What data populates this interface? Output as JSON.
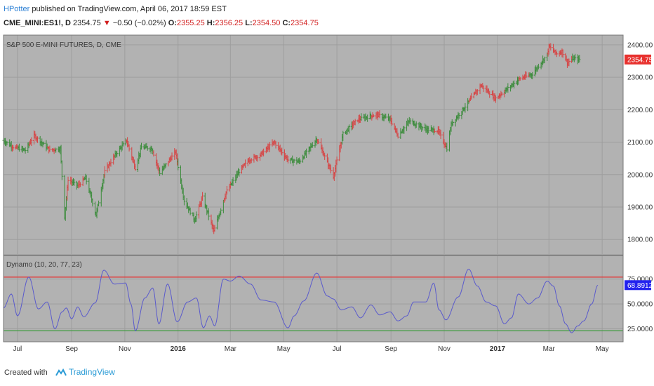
{
  "header": {
    "author": "HPotter",
    "published_text": "published on TradingView.com, April 06, 2017 18:59 EST",
    "symbol": "CME_MINI:ES1!, D",
    "last": "2354.75",
    "change": "−0.50 (−0.02%)",
    "o_label": "O:",
    "o": "2355.25",
    "h_label": "H:",
    "h": "2356.25",
    "l_label": "L:",
    "l": "2354.50",
    "c_label": "C:",
    "c": "2354.75"
  },
  "footer": {
    "created_with": "Created with",
    "brand": "TradingView"
  },
  "colors": {
    "pane_bg": "#b2b2b2",
    "grid": "#9e9e9e",
    "up": "#3c8c3c",
    "down": "#d64545",
    "oscillator": "#5a5acc",
    "upper_band": "#e33a3a",
    "lower_band": "#3a9b3a",
    "price_tag": "#e8322f",
    "osc_tag": "#2222ee"
  },
  "chart_data": [
    {
      "type": "ohlc",
      "title": "S&P 500 E-MINI FUTURES, D, CME",
      "x_range": [
        "2015-06-15",
        "2017-05-25"
      ],
      "ylim": [
        1755,
        2430
      ],
      "yticks": [
        "2400.00",
        "2300.00",
        "2200.00",
        "2100.00",
        "2000.00",
        "1900.00",
        "1800.00"
      ],
      "last_price_label": "2354.75",
      "color_rule": "green when Dynamo oscillator rising, red when falling",
      "anchor_closes": [
        [
          "2015-06-15",
          2105
        ],
        [
          "2015-06-26",
          2085
        ],
        [
          "2015-07-10",
          2075
        ],
        [
          "2015-07-20",
          2120
        ],
        [
          "2015-08-07",
          2075
        ],
        [
          "2015-08-19",
          2080
        ],
        [
          "2015-08-24",
          1870
        ],
        [
          "2015-08-28",
          1985
        ],
        [
          "2015-09-08",
          1965
        ],
        [
          "2015-09-17",
          1990
        ],
        [
          "2015-09-29",
          1875
        ],
        [
          "2015-10-09",
          2010
        ],
        [
          "2015-10-22",
          2065
        ],
        [
          "2015-11-03",
          2105
        ],
        [
          "2015-11-13",
          2020
        ],
        [
          "2015-11-20",
          2085
        ],
        [
          "2015-12-02",
          2080
        ],
        [
          "2015-12-11",
          2005
        ],
        [
          "2015-12-29",
          2070
        ],
        [
          "2016-01-08",
          1920
        ],
        [
          "2016-01-20",
          1860
        ],
        [
          "2016-01-29",
          1930
        ],
        [
          "2016-02-11",
          1825
        ],
        [
          "2016-02-25",
          1945
        ],
        [
          "2016-03-11",
          2010
        ],
        [
          "2016-03-22",
          2045
        ],
        [
          "2016-04-04",
          2060
        ],
        [
          "2016-04-20",
          2100
        ],
        [
          "2016-05-06",
          2045
        ],
        [
          "2016-05-19",
          2040
        ],
        [
          "2016-06-08",
          2110
        ],
        [
          "2016-06-27",
          1995
        ],
        [
          "2016-07-08",
          2125
        ],
        [
          "2016-07-25",
          2170
        ],
        [
          "2016-08-15",
          2185
        ],
        [
          "2016-08-31",
          2170
        ],
        [
          "2016-09-09",
          2120
        ],
        [
          "2016-09-22",
          2165
        ],
        [
          "2016-10-11",
          2140
        ],
        [
          "2016-10-25",
          2135
        ],
        [
          "2016-11-04",
          2080
        ],
        [
          "2016-11-09",
          2155
        ],
        [
          "2016-11-25",
          2210
        ],
        [
          "2016-12-13",
          2275
        ],
        [
          "2016-12-30",
          2235
        ],
        [
          "2017-01-26",
          2295
        ],
        [
          "2017-02-10",
          2310
        ],
        [
          "2017-02-27",
          2370
        ],
        [
          "2017-03-01",
          2395
        ],
        [
          "2017-03-10",
          2372
        ],
        [
          "2017-03-16",
          2380
        ],
        [
          "2017-03-22",
          2345
        ],
        [
          "2017-03-29",
          2358
        ],
        [
          "2017-04-05",
          2354.75
        ]
      ]
    },
    {
      "type": "line",
      "title": "Dynamo (10, 20, 77, 23)",
      "ylim": [
        12,
        98
      ],
      "yticks": [
        "75.0000",
        "50.0000",
        "25.0000"
      ],
      "upper_band": 77,
      "lower_band": 23,
      "last_value_label": "68.8912",
      "series": [
        {
          "values": [
            [
              "2015-06-15",
              46
            ],
            [
              "2015-06-24",
              60
            ],
            [
              "2015-07-01",
              38
            ],
            [
              "2015-07-14",
              77
            ],
            [
              "2015-07-25",
              45
            ],
            [
              "2015-08-04",
              52
            ],
            [
              "2015-08-13",
              25
            ],
            [
              "2015-08-21",
              42
            ],
            [
              "2015-08-26",
              46
            ],
            [
              "2015-09-01",
              35
            ],
            [
              "2015-09-08",
              47
            ],
            [
              "2015-09-15",
              37
            ],
            [
              "2015-09-28",
              51
            ],
            [
              "2015-10-08",
              84
            ],
            [
              "2015-10-20",
              70
            ],
            [
              "2015-11-02",
              71
            ],
            [
              "2015-11-08",
              50
            ],
            [
              "2015-11-13",
              23
            ],
            [
              "2015-11-24",
              56
            ],
            [
              "2015-12-03",
              66
            ],
            [
              "2015-12-10",
              30
            ],
            [
              "2015-12-20",
              70
            ],
            [
              "2015-12-31",
              32
            ],
            [
              "2016-01-12",
              52
            ],
            [
              "2016-01-22",
              56
            ],
            [
              "2016-01-30",
              26
            ],
            [
              "2016-02-06",
              38
            ],
            [
              "2016-02-12",
              28
            ],
            [
              "2016-02-22",
              75
            ],
            [
              "2016-03-01",
              73
            ],
            [
              "2016-03-11",
              78
            ],
            [
              "2016-03-24",
              70
            ],
            [
              "2016-04-05",
              54
            ],
            [
              "2016-04-20",
              52
            ],
            [
              "2016-05-06",
              26
            ],
            [
              "2016-05-13",
              38
            ],
            [
              "2016-05-24",
              53
            ],
            [
              "2016-06-08",
              81
            ],
            [
              "2016-06-20",
              58
            ],
            [
              "2016-06-27",
              55
            ],
            [
              "2016-07-06",
              44
            ],
            [
              "2016-07-18",
              47
            ],
            [
              "2016-07-28",
              36
            ],
            [
              "2016-08-09",
              49
            ],
            [
              "2016-08-19",
              39
            ],
            [
              "2016-08-31",
              42
            ],
            [
              "2016-09-09",
              33
            ],
            [
              "2016-09-19",
              38
            ],
            [
              "2016-09-27",
              52
            ],
            [
              "2016-10-11",
              52
            ],
            [
              "2016-10-20",
              71
            ],
            [
              "2016-10-26",
              44
            ],
            [
              "2016-11-03",
              34
            ],
            [
              "2016-11-17",
              57
            ],
            [
              "2016-11-29",
              85
            ],
            [
              "2016-12-09",
              68
            ],
            [
              "2016-12-19",
              52
            ],
            [
              "2016-12-30",
              48
            ],
            [
              "2017-01-09",
              30
            ],
            [
              "2017-01-17",
              36
            ],
            [
              "2017-01-25",
              60
            ],
            [
              "2017-02-06",
              50
            ],
            [
              "2017-02-16",
              56
            ],
            [
              "2017-02-27",
              73
            ],
            [
              "2017-03-06",
              68
            ],
            [
              "2017-03-13",
              48
            ],
            [
              "2017-03-20",
              30
            ],
            [
              "2017-03-27",
              21
            ],
            [
              "2017-04-03",
              28
            ],
            [
              "2017-04-10",
              33
            ],
            [
              "2017-04-19",
              50
            ],
            [
              "2017-04-26",
              68.89
            ]
          ]
        }
      ]
    }
  ],
  "time_axis_labels": [
    {
      "date": "2015-07-01",
      "label": "Jul",
      "bold": false
    },
    {
      "date": "2015-09-01",
      "label": "Sep",
      "bold": false
    },
    {
      "date": "2015-11-01",
      "label": "Nov",
      "bold": false
    },
    {
      "date": "2016-01-01",
      "label": "2016",
      "bold": true
    },
    {
      "date": "2016-03-01",
      "label": "Mar",
      "bold": false
    },
    {
      "date": "2016-05-01",
      "label": "May",
      "bold": false
    },
    {
      "date": "2016-07-01",
      "label": "Jul",
      "bold": false
    },
    {
      "date": "2016-09-01",
      "label": "Sep",
      "bold": false
    },
    {
      "date": "2016-11-01",
      "label": "Nov",
      "bold": false
    },
    {
      "date": "2017-01-01",
      "label": "2017",
      "bold": true
    },
    {
      "date": "2017-03-01",
      "label": "Mar",
      "bold": false
    },
    {
      "date": "2017-05-01",
      "label": "May",
      "bold": false
    }
  ]
}
